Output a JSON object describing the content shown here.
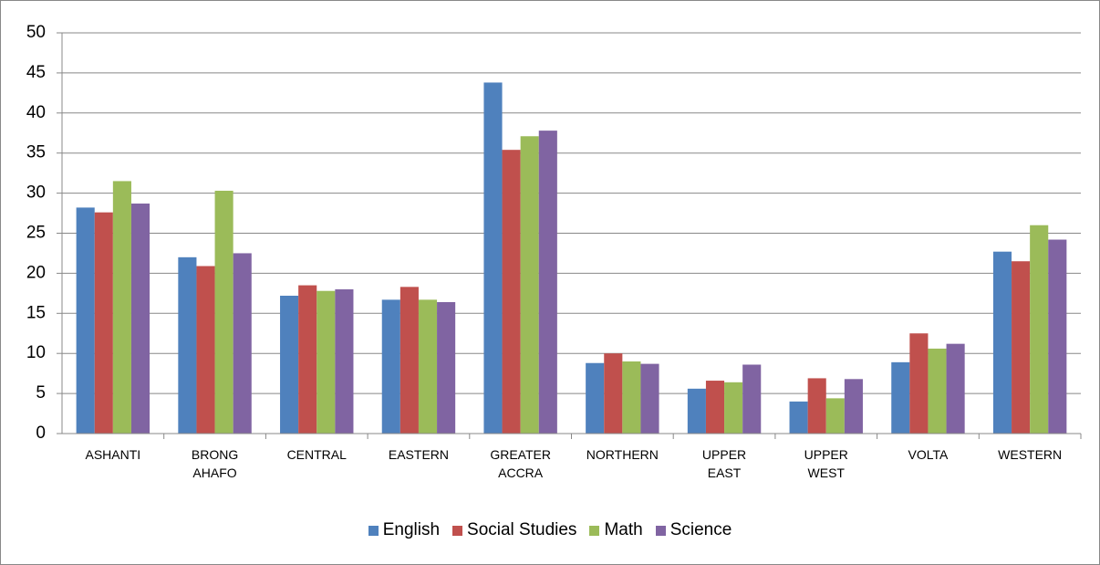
{
  "chart_data": {
    "type": "bar",
    "categories": [
      "ASHANTI",
      "BRONG AHAFO",
      "CENTRAL",
      "EASTERN",
      "GREATER ACCRA",
      "NORTHERN",
      "UPPER EAST",
      "UPPER WEST",
      "VOLTA",
      "WESTERN"
    ],
    "series": [
      {
        "name": "English",
        "color": "#4f81bd",
        "values": [
          28.2,
          22,
          17.2,
          16.7,
          43.8,
          8.8,
          5.6,
          4,
          8.9,
          22.7
        ]
      },
      {
        "name": "Social Studies",
        "color": "#c0504d",
        "values": [
          27.6,
          20.9,
          18.5,
          18.3,
          35.4,
          10,
          6.6,
          6.9,
          12.5,
          21.5
        ]
      },
      {
        "name": "Math",
        "color": "#9bbb59",
        "values": [
          31.5,
          30.3,
          17.8,
          16.7,
          37.1,
          9,
          6.4,
          4.4,
          10.6,
          26
        ]
      },
      {
        "name": "Science",
        "color": "#8064a2",
        "values": [
          28.7,
          22.5,
          18,
          16.4,
          37.8,
          8.7,
          8.6,
          6.8,
          11.2,
          24.2
        ]
      }
    ],
    "ylim": [
      0,
      50
    ],
    "yticks": [
      0,
      5,
      10,
      15,
      20,
      25,
      30,
      35,
      40,
      45,
      50
    ],
    "grid": true,
    "legend": "bottom"
  }
}
